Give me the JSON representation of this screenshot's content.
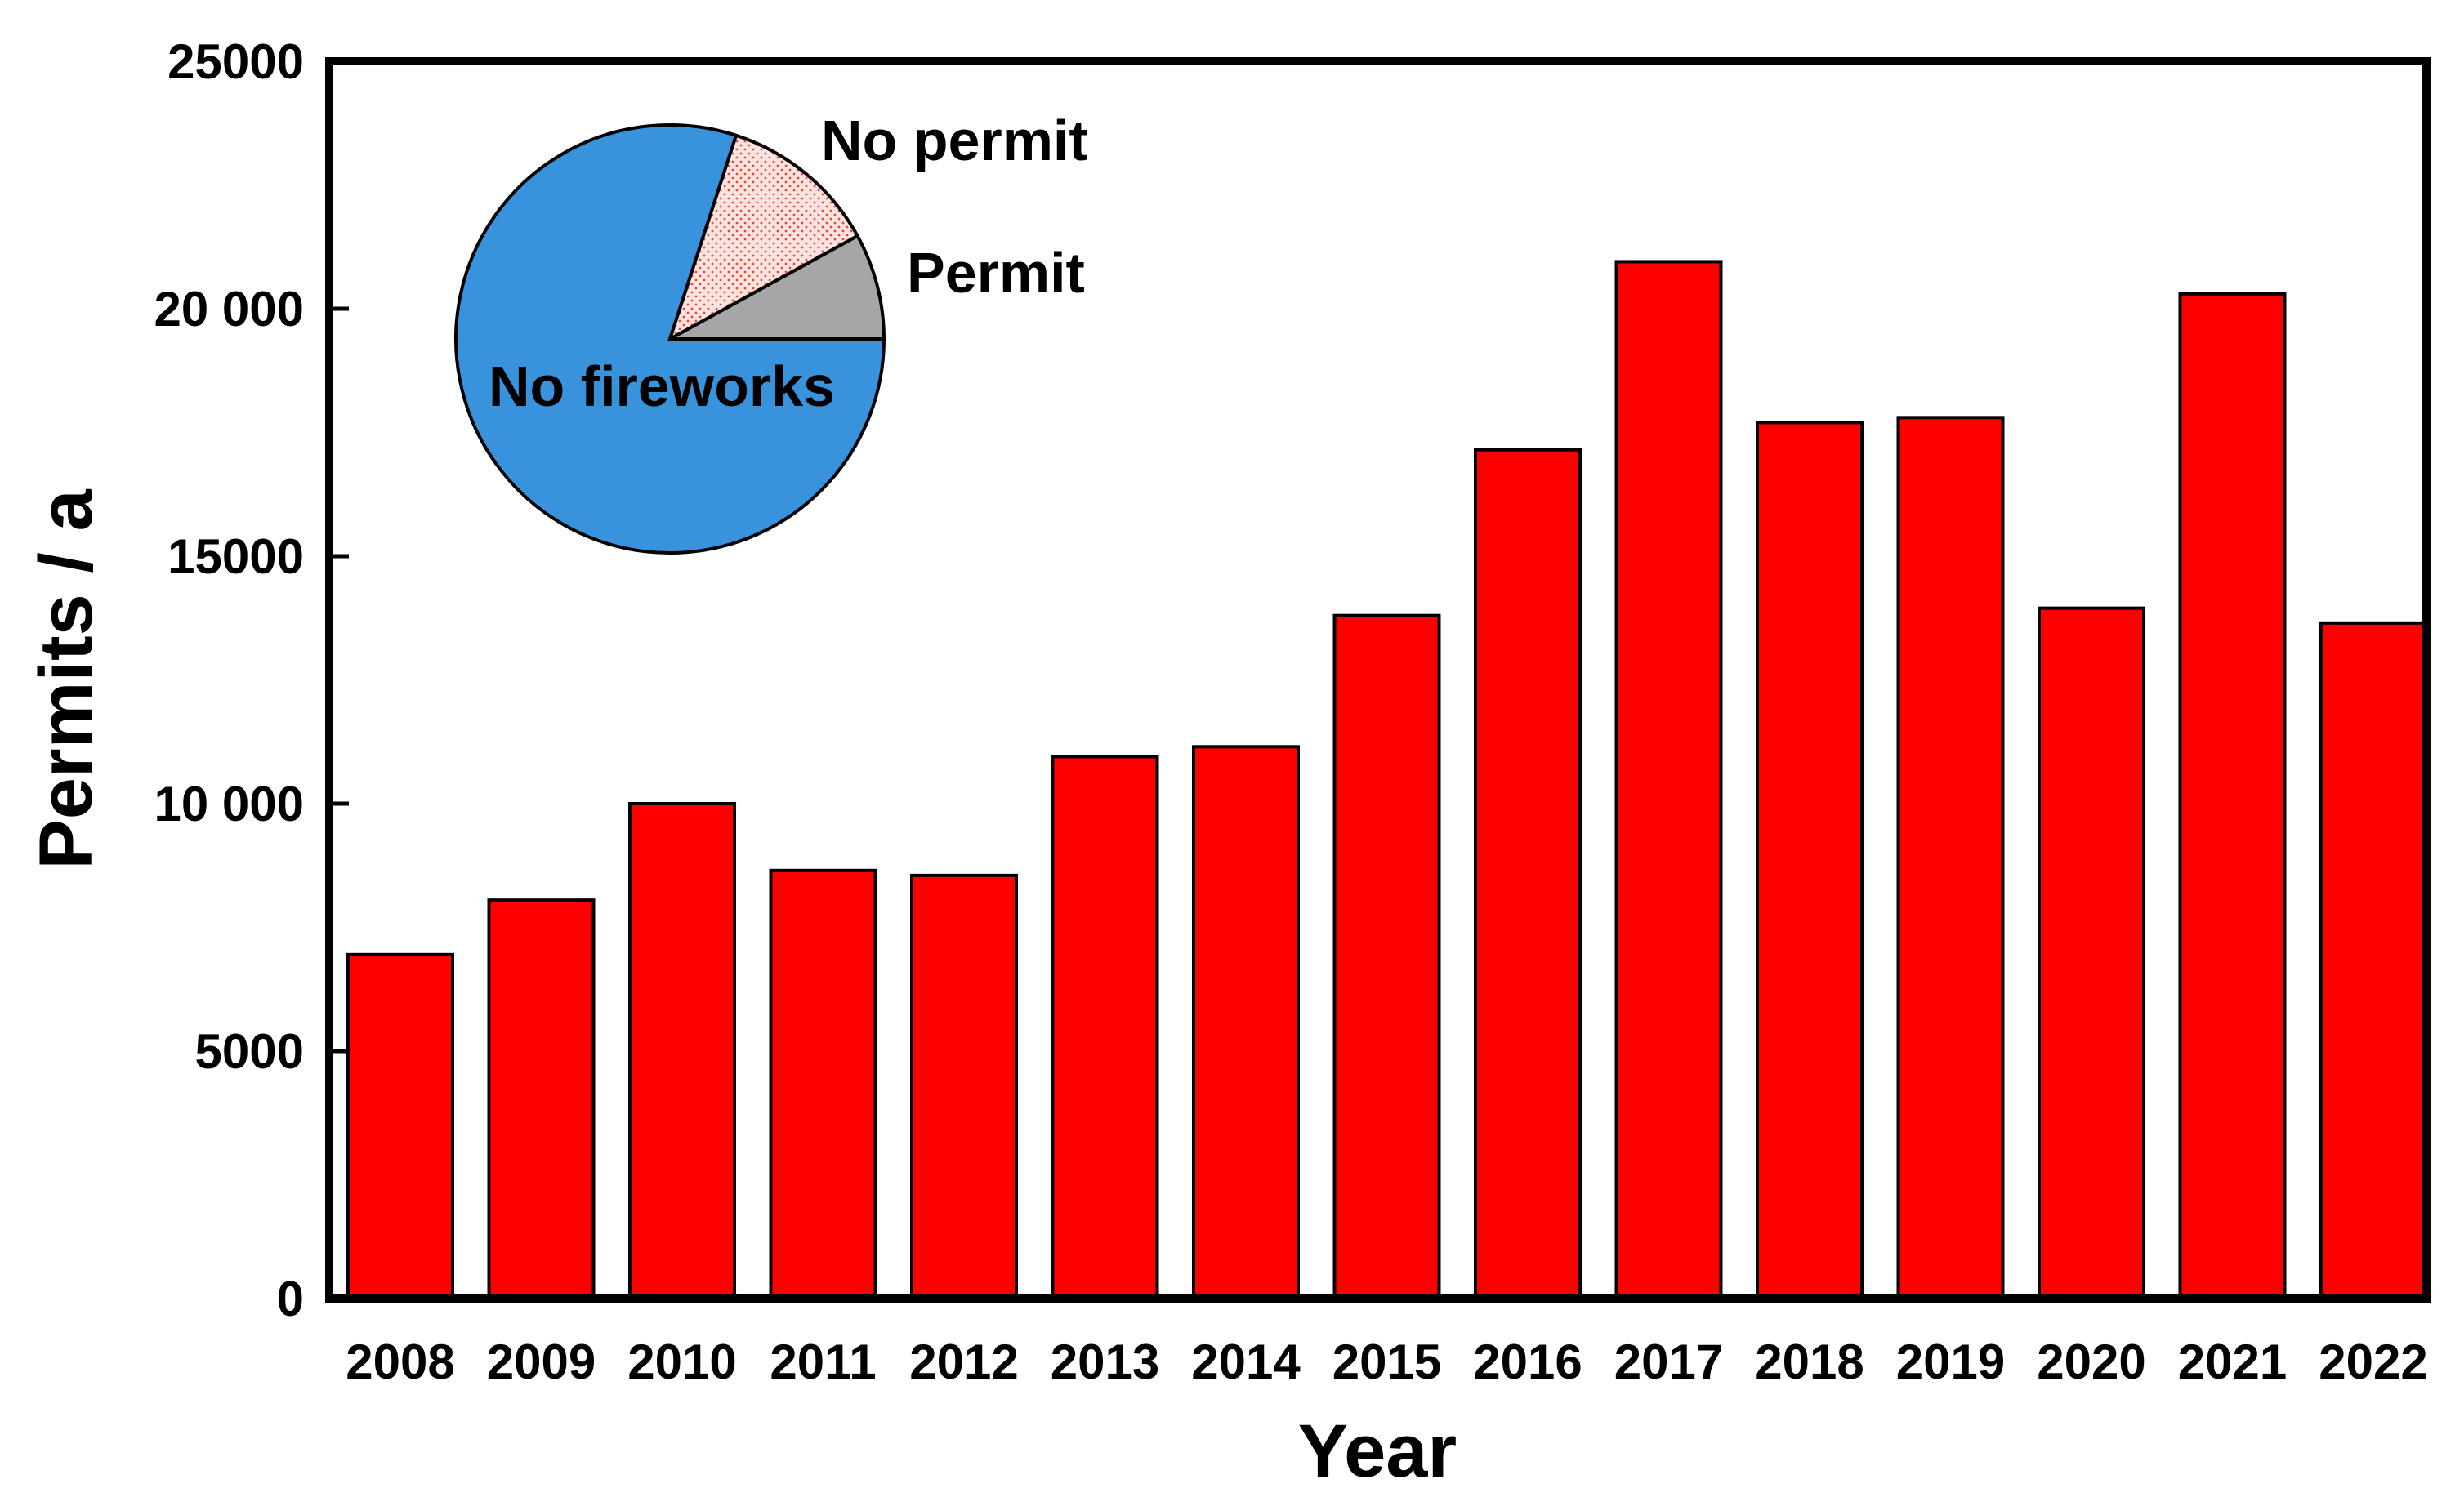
{
  "chart_data": [
    {
      "type": "bar",
      "title": "",
      "xlabel": "Year",
      "ylabel": "Permits / a",
      "ylim": [
        0,
        25000
      ],
      "y_ticks": [
        "0",
        "5000",
        "10 000",
        "15000",
        "20 000",
        "25000"
      ],
      "y_tick_values": [
        0,
        5000,
        10000,
        15000,
        20000,
        25000
      ],
      "grid": false,
      "categories": [
        "2008",
        "2009",
        "2010",
        "2011",
        "2012",
        "2013",
        "2014",
        "2015",
        "2016",
        "2017",
        "2018",
        "2019",
        "2020",
        "2021",
        "2022"
      ],
      "values": [
        6950,
        8050,
        10000,
        8650,
        8550,
        10950,
        11150,
        13800,
        17150,
        20950,
        17700,
        17800,
        13950,
        20300,
        13650
      ],
      "bar_color": "#ff0000"
    },
    {
      "type": "pie",
      "title": "",
      "slices": [
        {
          "label": "Permit",
          "value": 8,
          "color": "#a6a6a6",
          "pattern": "solid"
        },
        {
          "label": "No permit",
          "value": 12,
          "color": "#ffe3de",
          "pattern": "dotted-red"
        },
        {
          "label": "No fireworks",
          "value": 80,
          "color": "#3892dc",
          "pattern": "solid"
        }
      ]
    }
  ]
}
